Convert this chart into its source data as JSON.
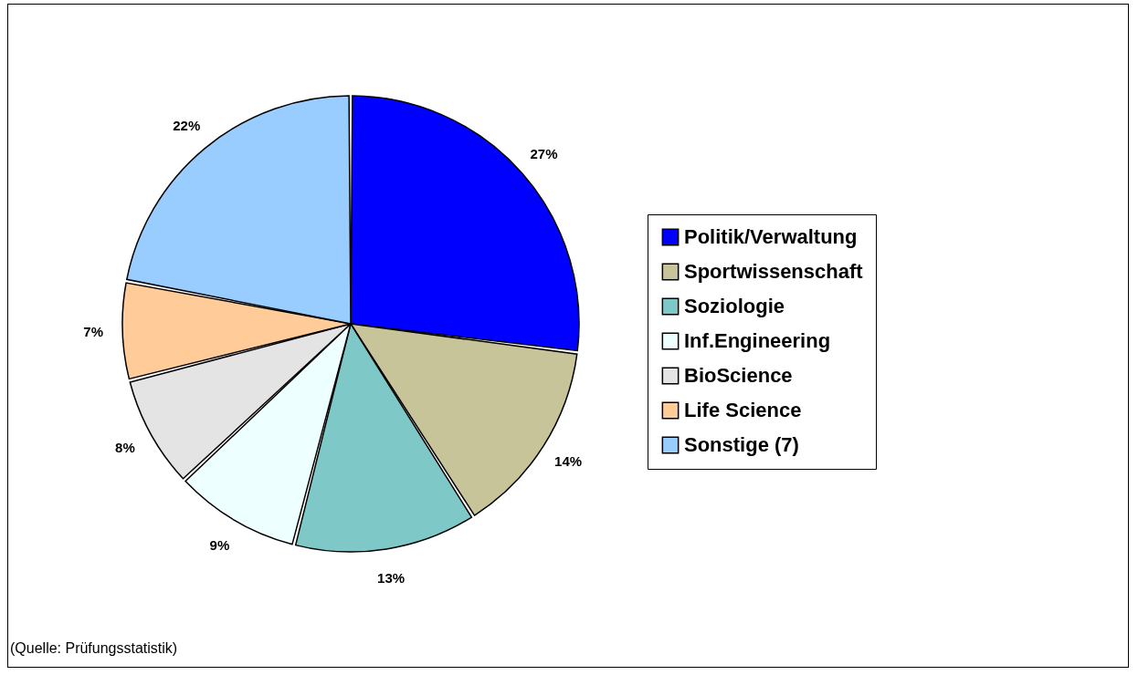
{
  "chart_data": {
    "type": "pie",
    "categories": [
      "Politik/Verwaltung",
      "Sportwissenschaft",
      "Soziologie",
      "Inf.Engineering",
      "BioScience",
      "Life Science",
      "Sonstige (7)"
    ],
    "values": [
      27,
      14,
      13,
      9,
      8,
      7,
      22
    ],
    "value_labels": [
      "27%",
      "14%",
      "13%",
      "9%",
      "8%",
      "7%",
      "22%"
    ],
    "colors": [
      "#0000ff",
      "#c8c49a",
      "#7fc8c8",
      "#eeffff",
      "#e4e4e4",
      "#ffcc99",
      "#99ccff"
    ],
    "legend": "right",
    "annotations": [
      "(Quelle: Prüfungsstatistik)"
    ]
  }
}
